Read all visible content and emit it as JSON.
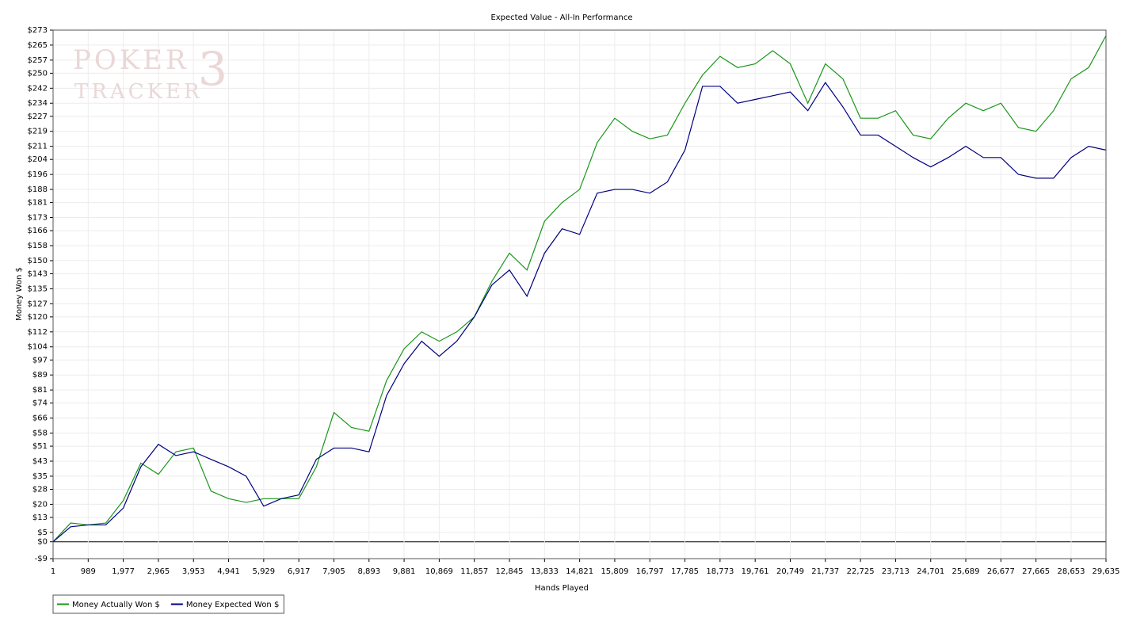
{
  "chart_data": {
    "type": "line",
    "title": "Expected Value - All-In Performance",
    "x_label": "Hands Played",
    "y_label": "Money Won $",
    "watermark": {
      "top": "POKER",
      "bottom": "TRACKER",
      "mark": "3"
    },
    "xlim": [
      1,
      29635
    ],
    "ylim": [
      -9,
      273
    ],
    "grid": true,
    "legend": "bottom-left",
    "xticks": [
      1,
      989,
      {
        "value": 1977,
        "label": "1,977"
      },
      {
        "value": 2965,
        "label": "2,965"
      },
      {
        "value": 3953,
        "label": "3,953"
      },
      {
        "value": 4941,
        "label": "4,941"
      },
      {
        "value": 5929,
        "label": "5,929"
      },
      {
        "value": 6917,
        "label": "6,917"
      },
      {
        "value": 7905,
        "label": "7,905"
      },
      {
        "value": 8893,
        "label": "8,893"
      },
      {
        "value": 9881,
        "label": "9,881"
      },
      {
        "value": 10869,
        "label": "10,869"
      },
      {
        "value": 11857,
        "label": "11,857"
      },
      {
        "value": 12845,
        "label": "12,845"
      },
      {
        "value": 13833,
        "label": "13,833"
      },
      {
        "value": 14821,
        "label": "14,821"
      },
      {
        "value": 15809,
        "label": "15,809"
      },
      {
        "value": 16797,
        "label": "16,797"
      },
      {
        "value": 17785,
        "label": "17,785"
      },
      {
        "value": 18773,
        "label": "18,773"
      },
      {
        "value": 19761,
        "label": "19,761"
      },
      {
        "value": 20749,
        "label": "20,749"
      },
      {
        "value": 21737,
        "label": "21,737"
      },
      {
        "value": 22725,
        "label": "22,725"
      },
      {
        "value": 23713,
        "label": "23,713"
      },
      {
        "value": 24701,
        "label": "24,701"
      },
      {
        "value": 25689,
        "label": "25,689"
      },
      {
        "value": 26677,
        "label": "26,677"
      },
      {
        "value": 27665,
        "label": "27,665"
      },
      {
        "value": 28653,
        "label": "28,653"
      },
      {
        "value": 29635,
        "label": "29,635"
      }
    ],
    "yticks": [
      {
        "value": -9,
        "label": "-$9"
      },
      {
        "value": 0,
        "label": "$0"
      },
      {
        "value": 5,
        "label": "$5"
      },
      {
        "value": 13,
        "label": "$13"
      },
      {
        "value": 20,
        "label": "$20"
      },
      {
        "value": 28,
        "label": "$28"
      },
      {
        "value": 35,
        "label": "$35"
      },
      {
        "value": 43,
        "label": "$43"
      },
      {
        "value": 51,
        "label": "$51"
      },
      {
        "value": 58,
        "label": "$58"
      },
      {
        "value": 66,
        "label": "$66"
      },
      {
        "value": 74,
        "label": "$74"
      },
      {
        "value": 81,
        "label": "$81"
      },
      {
        "value": 89,
        "label": "$89"
      },
      {
        "value": 97,
        "label": "$97"
      },
      {
        "value": 104,
        "label": "$104"
      },
      {
        "value": 112,
        "label": "$112"
      },
      {
        "value": 120,
        "label": "$120"
      },
      {
        "value": 127,
        "label": "$127"
      },
      {
        "value": 135,
        "label": "$135"
      },
      {
        "value": 143,
        "label": "$143"
      },
      {
        "value": 150,
        "label": "$150"
      },
      {
        "value": 158,
        "label": "$158"
      },
      {
        "value": 166,
        "label": "$166"
      },
      {
        "value": 173,
        "label": "$173"
      },
      {
        "value": 181,
        "label": "$181"
      },
      {
        "value": 188,
        "label": "$188"
      },
      {
        "value": 196,
        "label": "$196"
      },
      {
        "value": 204,
        "label": "$204"
      },
      {
        "value": 211,
        "label": "$211"
      },
      {
        "value": 219,
        "label": "$219"
      },
      {
        "value": 227,
        "label": "$227"
      },
      {
        "value": 234,
        "label": "$234"
      },
      {
        "value": 242,
        "label": "$242"
      },
      {
        "value": 250,
        "label": "$250"
      },
      {
        "value": 257,
        "label": "$257"
      },
      {
        "value": 265,
        "label": "$265"
      },
      {
        "value": 273,
        "label": "$273"
      }
    ],
    "x": [
      1,
      495,
      989,
      1483,
      1977,
      2471,
      2965,
      3459,
      3953,
      4447,
      4941,
      5435,
      5929,
      6423,
      6917,
      7411,
      7905,
      8399,
      8893,
      9387,
      9881,
      10375,
      10869,
      11363,
      11857,
      12351,
      12845,
      13339,
      13833,
      14327,
      14821,
      15315,
      15809,
      16303,
      16797,
      17291,
      17785,
      18279,
      18773,
      19267,
      19761,
      20255,
      20749,
      21243,
      21737,
      22231,
      22725,
      23219,
      23713,
      24207,
      24701,
      25195,
      25689,
      26183,
      26677,
      27171,
      27665,
      28159,
      28653,
      29147,
      29635
    ],
    "series": [
      {
        "name": "Money Actually Won $",
        "color": "#1a961a",
        "values": [
          0,
          10,
          9,
          10,
          22,
          42,
          36,
          48,
          50,
          27,
          23,
          21,
          23,
          23,
          23,
          40,
          69,
          61,
          59,
          86,
          103,
          112,
          107,
          112,
          120,
          139,
          154,
          145,
          171,
          181,
          188,
          213,
          226,
          219,
          215,
          217,
          234,
          249,
          259,
          253,
          255,
          262,
          255,
          234,
          255,
          247,
          226,
          226,
          230,
          217,
          215,
          226,
          234,
          230,
          234,
          221,
          219,
          230,
          247,
          253,
          270
        ]
      },
      {
        "name": "Money Expected Won $",
        "color": "#000080",
        "values": [
          0,
          8,
          9,
          9,
          18,
          40,
          52,
          46,
          48,
          44,
          40,
          35,
          19,
          23,
          25,
          44,
          50,
          50,
          48,
          78,
          95,
          107,
          99,
          107,
          120,
          137,
          145,
          131,
          154,
          167,
          164,
          186,
          188,
          188,
          186,
          192,
          209,
          243,
          243,
          234,
          236,
          238,
          240,
          230,
          245,
          232,
          217,
          217,
          211,
          205,
          200,
          205,
          211,
          205,
          205,
          196,
          194,
          194,
          205,
          211,
          209
        ]
      }
    ]
  }
}
